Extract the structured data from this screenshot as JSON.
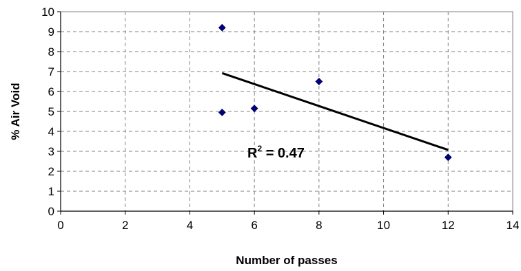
{
  "chart_data": {
    "type": "scatter",
    "title": "",
    "xlabel": "Number of passes",
    "ylabel": "% Air Void",
    "xlim": [
      0,
      14
    ],
    "ylim": [
      0,
      10
    ],
    "xticks": [
      "0",
      "2",
      "4",
      "6",
      "8",
      "10",
      "12",
      "14"
    ],
    "yticks": [
      "0",
      "1",
      "2",
      "3",
      "4",
      "5",
      "6",
      "7",
      "8",
      "9",
      "10"
    ],
    "grid": true,
    "grid_style": "dashed",
    "marker_color": "#000080",
    "line_color": "#000000",
    "points": [
      {
        "x": 5,
        "y": 9.2
      },
      {
        "x": 5,
        "y": 4.95
      },
      {
        "x": 6,
        "y": 5.15
      },
      {
        "x": 8,
        "y": 6.5
      },
      {
        "x": 12,
        "y": 2.7
      }
    ],
    "trendline": {
      "x": [
        5,
        12
      ],
      "y": [
        6.92,
        3.07
      ]
    },
    "annotation": {
      "prefix": "R",
      "superscript": "2",
      "suffix": " = 0.47"
    }
  }
}
